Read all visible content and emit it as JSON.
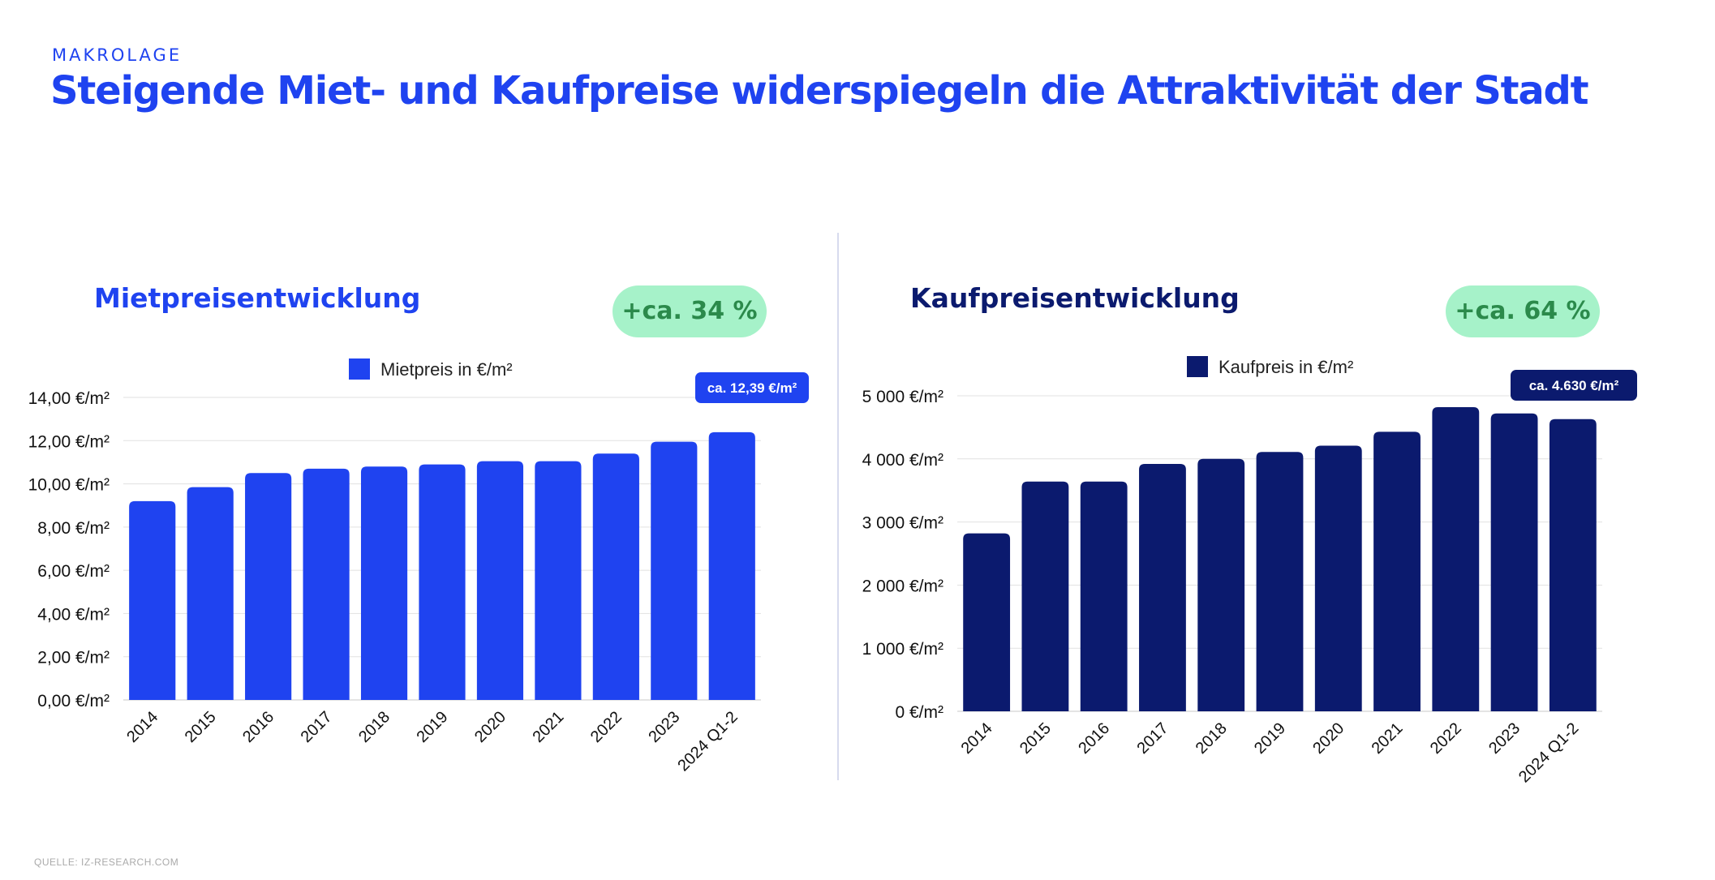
{
  "header": {
    "eyebrow": "MAKROLAGE",
    "title": "Steigende Miet- und Kaufpreise widerspiegeln die Attraktivität der Stadt"
  },
  "footer": {
    "source": "QUELLE: IZ-RESEARCH.COM"
  },
  "colors": {
    "brand": "#1f43f0",
    "navy": "#0b1a6e",
    "badge_bg": "#a6f2c9",
    "badge_text": "#2b8a4b"
  },
  "panels": {
    "left": {
      "title": "Mietpreisentwicklung",
      "badge": "+ca. 34 %"
    },
    "right": {
      "title": "Kaufpreisentwicklung",
      "badge": "+ca. 64 %"
    }
  },
  "chart_data": [
    {
      "type": "bar",
      "title": "Mietpreisentwicklung",
      "legend": "Mietpreis in €/m²",
      "legend_position": "top-center",
      "categories": [
        "2014",
        "2015",
        "2016",
        "2017",
        "2018",
        "2019",
        "2020",
        "2021",
        "2022",
        "2023",
        "2024 Q1-2"
      ],
      "values": [
        9.2,
        9.85,
        10.5,
        10.7,
        10.8,
        10.9,
        11.05,
        11.05,
        11.4,
        11.95,
        12.39
      ],
      "ylim": [
        0,
        14
      ],
      "yticks": [
        0,
        2,
        4,
        6,
        8,
        10,
        12,
        14
      ],
      "ytick_labels": [
        "0,00 €/m²",
        "2,00 €/m²",
        "4,00 €/m²",
        "6,00 €/m²",
        "8,00 €/m²",
        "10,00 €/m²",
        "12,00 €/m²",
        "14,00 €/m²"
      ],
      "callout": "ca. 12,39 €/m²",
      "color": "#1f43f0",
      "grid": true
    },
    {
      "type": "bar",
      "title": "Kaufpreisentwicklung",
      "legend": "Kaufpreis in €/m²",
      "legend_position": "top-center",
      "categories": [
        "2014",
        "2015",
        "2016",
        "2017",
        "2018",
        "2019",
        "2020",
        "2021",
        "2022",
        "2023",
        "2024 Q1-2"
      ],
      "values": [
        2820,
        3640,
        3640,
        3920,
        4000,
        4110,
        4210,
        4430,
        4820,
        4720,
        4630
      ],
      "ylim": [
        0,
        5000
      ],
      "yticks": [
        0,
        1000,
        2000,
        3000,
        4000,
        5000
      ],
      "ytick_labels": [
        "0 €/m²",
        "1 000 €/m²",
        "2 000 €/m²",
        "3 000 €/m²",
        "4 000 €/m²",
        "5 000 €/m²"
      ],
      "callout": "ca. 4.630 €/m²",
      "color": "#0b1a6e",
      "grid": true
    }
  ]
}
